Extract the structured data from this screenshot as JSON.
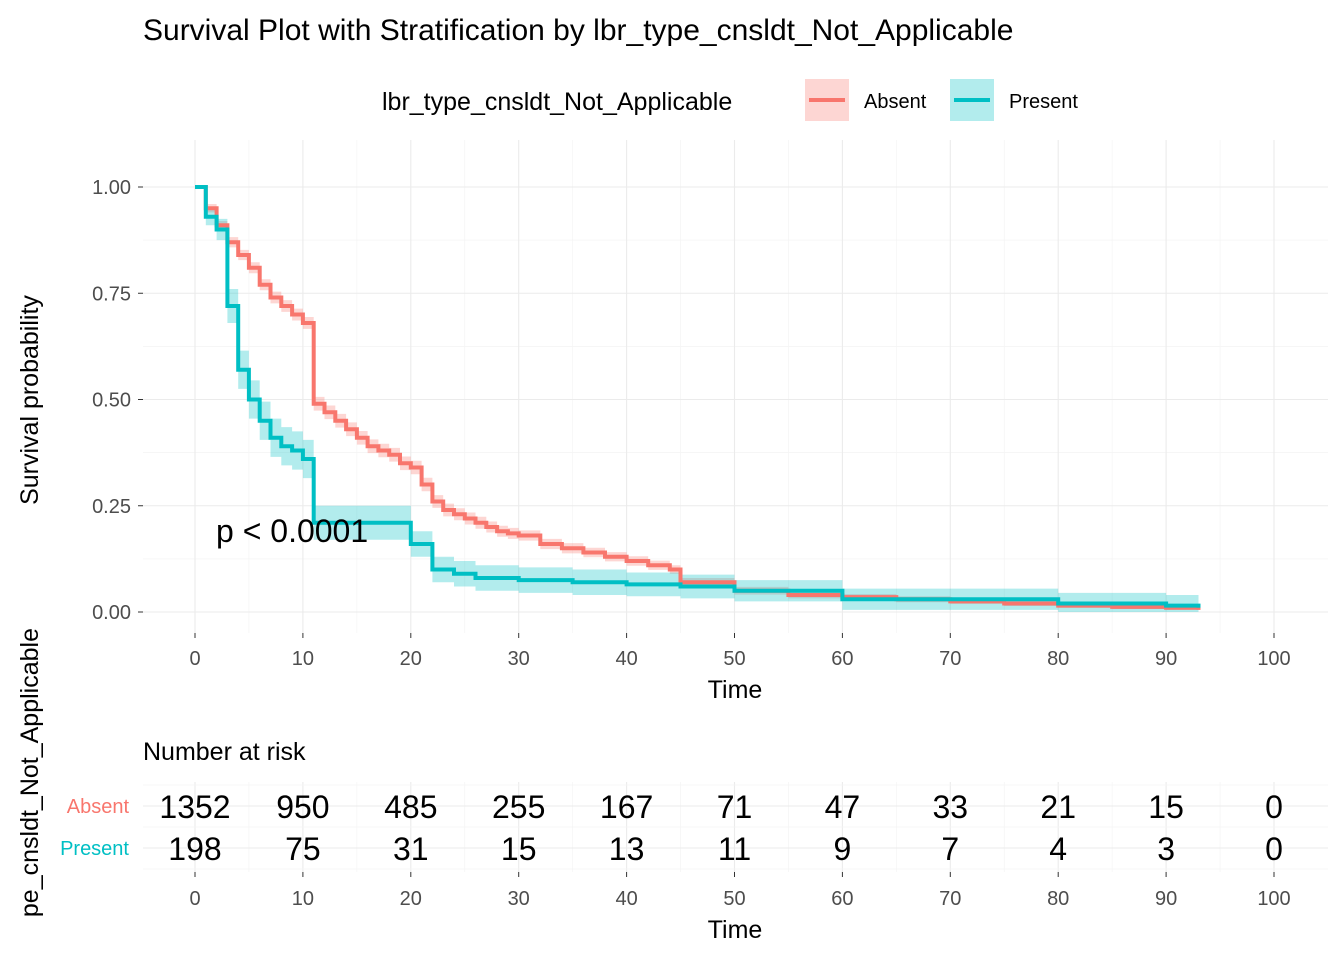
{
  "chart_data": {
    "type": "line",
    "subtype": "kaplan-meier survival curve",
    "title": "Survival Plot with Stratification by lbr_type_cnsldt_Not_Applicable",
    "xlabel": "Time",
    "ylabel": "Survival probability",
    "xlim": [
      0,
      100
    ],
    "ylim": [
      0,
      1
    ],
    "x_ticks": [
      0,
      10,
      20,
      30,
      40,
      50,
      60,
      70,
      80,
      90,
      100
    ],
    "y_ticks": [
      0.0,
      0.25,
      0.5,
      0.75,
      1.0
    ],
    "y_tick_labels": [
      "0.00",
      "0.25",
      "0.50",
      "0.75",
      "1.00"
    ],
    "grid": true,
    "legend": {
      "position": "top",
      "title": "lbr_type_cnsldt_Not_Applicable",
      "entries": [
        "Absent",
        "Present"
      ]
    },
    "annotation": "p < 0.0001",
    "series": [
      {
        "name": "Absent",
        "color": "#F8766D",
        "x": [
          0,
          1,
          2,
          3,
          4,
          5,
          6,
          7,
          8,
          9,
          10,
          11,
          12,
          13,
          14,
          15,
          16,
          17,
          18,
          19,
          20,
          21,
          22,
          23,
          24,
          25,
          26,
          27,
          28,
          29,
          30,
          32,
          34,
          36,
          38,
          40,
          42,
          44,
          45,
          50,
          55,
          60,
          65,
          70,
          75,
          80,
          85,
          90,
          93
        ],
        "y": [
          1.0,
          0.95,
          0.91,
          0.87,
          0.84,
          0.81,
          0.77,
          0.74,
          0.72,
          0.7,
          0.68,
          0.49,
          0.47,
          0.45,
          0.43,
          0.41,
          0.39,
          0.38,
          0.37,
          0.35,
          0.34,
          0.3,
          0.26,
          0.24,
          0.23,
          0.22,
          0.21,
          0.2,
          0.19,
          0.185,
          0.18,
          0.16,
          0.15,
          0.14,
          0.13,
          0.12,
          0.11,
          0.1,
          0.07,
          0.05,
          0.04,
          0.035,
          0.03,
          0.025,
          0.02,
          0.015,
          0.012,
          0.01,
          0.005
        ],
        "ci_width": [
          0.0,
          0.01,
          0.01,
          0.012,
          0.012,
          0.013,
          0.013,
          0.014,
          0.014,
          0.014,
          0.014,
          0.016,
          0.016,
          0.016,
          0.016,
          0.016,
          0.016,
          0.016,
          0.016,
          0.016,
          0.016,
          0.016,
          0.015,
          0.015,
          0.014,
          0.014,
          0.014,
          0.013,
          0.013,
          0.013,
          0.012,
          0.012,
          0.012,
          0.011,
          0.011,
          0.011,
          0.011,
          0.01,
          0.01,
          0.009,
          0.008,
          0.007,
          0.007,
          0.006,
          0.006,
          0.005,
          0.005,
          0.005,
          0.004
        ]
      },
      {
        "name": "Present",
        "color": "#00BFC4",
        "x": [
          0,
          1,
          2,
          3,
          4,
          5,
          6,
          7,
          8,
          9,
          10,
          11,
          20,
          22,
          24,
          26,
          30,
          35,
          40,
          45,
          50,
          60,
          70,
          80,
          90,
          93
        ],
        "y": [
          1.0,
          0.93,
          0.9,
          0.72,
          0.57,
          0.5,
          0.45,
          0.41,
          0.39,
          0.38,
          0.36,
          0.21,
          0.16,
          0.1,
          0.09,
          0.08,
          0.075,
          0.07,
          0.065,
          0.06,
          0.05,
          0.03,
          0.03,
          0.02,
          0.015,
          0.01
        ],
        "ci_width": [
          0.0,
          0.02,
          0.025,
          0.04,
          0.045,
          0.045,
          0.045,
          0.045,
          0.045,
          0.045,
          0.045,
          0.04,
          0.03,
          0.03,
          0.03,
          0.03,
          0.03,
          0.03,
          0.028,
          0.028,
          0.025,
          0.025,
          0.025,
          0.025,
          0.025,
          0.02
        ]
      }
    ]
  },
  "risk_table": {
    "title": "Number at risk",
    "xlabel": "Time",
    "ylabel": "pe_cnsldt_Not_Applicable",
    "times": [
      0,
      10,
      20,
      30,
      40,
      50,
      60,
      70,
      80,
      90,
      100
    ],
    "rows": [
      {
        "label": "Absent",
        "color": "#F8766D",
        "values": [
          1352,
          950,
          485,
          255,
          167,
          71,
          47,
          33,
          21,
          15,
          0
        ]
      },
      {
        "label": "Present",
        "color": "#00BFC4",
        "values": [
          198,
          75,
          31,
          15,
          13,
          11,
          9,
          7,
          4,
          3,
          0
        ]
      }
    ]
  }
}
